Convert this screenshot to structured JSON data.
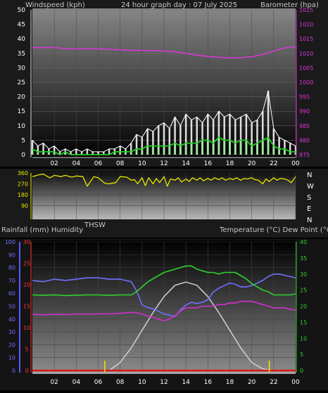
{
  "header": {
    "left": "Windspeed (kph)",
    "center": "24 hour graph day : 07 July 2025",
    "right": "Barometer (hpa)"
  },
  "mid_header": {
    "left": "Rainfall (mm)  Humidity",
    "center": "THSW",
    "right": "Temperature (°C) Dew Point (°C)"
  },
  "colors": {
    "wind_white": "#ffffff",
    "wind_green": "#22d022",
    "barometer": "#d838d8",
    "direction": "#e8e800",
    "humidity": "#7070ff",
    "rain_axis": "#ff3030",
    "temp_green": "#30d030",
    "dewpoint": "#d030d0",
    "thsw": "#cfcfcf",
    "sun_marker": "#e8e800"
  },
  "chart_data": [
    {
      "type": "line",
      "name": "wind-barometer",
      "x_ticks": [
        "02",
        "04",
        "06",
        "08",
        "10",
        "12",
        "14",
        "16",
        "18",
        "20",
        "22",
        "00"
      ],
      "xlim": [
        0,
        24
      ],
      "wind_axis": {
        "ticks": [
          "0",
          "5",
          "10",
          "15",
          "20",
          "25",
          "30",
          "35",
          "40",
          "45",
          "50"
        ],
        "ylim": [
          0,
          50
        ]
      },
      "baro_axis": {
        "ticks": [
          "975",
          "980",
          "985",
          "990",
          "995",
          "1000",
          "1005",
          "1010",
          "1015",
          "1020",
          "1025"
        ],
        "ylim": [
          975,
          1025
        ]
      },
      "barometer": {
        "x": [
          0,
          1,
          2,
          3,
          4,
          5,
          6,
          7,
          8,
          9,
          10,
          11,
          12,
          13,
          14,
          15,
          16,
          17,
          18,
          19,
          20,
          21,
          22,
          23,
          24
        ],
        "values": [
          1012,
          1012,
          1012,
          1011.6,
          1011.5,
          1011.6,
          1011.5,
          1011.4,
          1011.2,
          1011,
          1011,
          1010.9,
          1010.8,
          1010.5,
          1010,
          1009.4,
          1008.9,
          1008.6,
          1008.4,
          1008.5,
          1008.8,
          1009.6,
          1010.8,
          1011.9,
          1012.2
        ]
      },
      "wind_gust": {
        "x": [
          0,
          0.5,
          1,
          1.5,
          2,
          2.5,
          3,
          3.5,
          4,
          4.5,
          5,
          5.5,
          6,
          6.5,
          7,
          7.5,
          8,
          8.5,
          9,
          9.5,
          10,
          10.5,
          11,
          11.5,
          12,
          12.5,
          13,
          13.5,
          14,
          14.5,
          15,
          15.5,
          16,
          16.5,
          17,
          17.5,
          18,
          18.5,
          19,
          19.5,
          20,
          20.5,
          21,
          21.5,
          22,
          22.5,
          23,
          23.5,
          24
        ],
        "values": [
          5,
          3,
          4,
          2,
          3,
          1,
          2,
          1,
          2,
          1,
          2,
          1,
          1,
          1,
          2,
          2,
          3,
          2,
          4,
          7,
          6,
          9,
          8,
          10,
          11,
          9,
          13,
          10,
          14,
          12,
          13,
          11,
          14,
          12,
          15,
          13,
          14,
          12,
          13,
          14,
          11,
          12,
          15,
          22,
          9,
          6,
          5,
          4,
          3
        ]
      },
      "wind_avg": {
        "x": [
          0,
          0.5,
          1,
          1.5,
          2,
          2.5,
          3,
          3.5,
          4,
          4.5,
          5,
          5.5,
          6,
          6.5,
          7,
          7.5,
          8,
          8.5,
          9,
          9.5,
          10,
          10.5,
          11,
          11.5,
          12,
          12.5,
          13,
          13.5,
          14,
          14.5,
          15,
          15.5,
          16,
          16.5,
          17,
          17.5,
          18,
          18.5,
          19,
          19.5,
          20,
          20.5,
          21,
          21.5,
          22,
          22.5,
          23,
          23.5,
          24
        ],
        "values": [
          2,
          1,
          1,
          1,
          1,
          0,
          1,
          0,
          0,
          0,
          0,
          0,
          0,
          0,
          0,
          1,
          1,
          1,
          1,
          2,
          2,
          3,
          3,
          3,
          3,
          3,
          4,
          3,
          4,
          4,
          4,
          5,
          5,
          4,
          6,
          5,
          5,
          4,
          5,
          5,
          3,
          4,
          5,
          6,
          3,
          2,
          2,
          1,
          1
        ]
      }
    },
    {
      "type": "line",
      "name": "wind-direction",
      "x_ticks": [
        "02",
        "04",
        "06",
        "08",
        "10",
        "12",
        "14",
        "16",
        "18",
        "20",
        "22",
        "00"
      ],
      "xlim": [
        0,
        24
      ],
      "ticks": [
        "90",
        "180",
        "270",
        "360"
      ],
      "ylim": [
        0,
        360
      ],
      "compass": [
        "N",
        "W",
        "S",
        "E",
        "N"
      ],
      "series": {
        "x": [
          0,
          0.6,
          1,
          1.6,
          2,
          2.6,
          3,
          3.6,
          4,
          4.6,
          5,
          5.6,
          6,
          6.6,
          7,
          7.6,
          8,
          8.6,
          9,
          9.3,
          9.6,
          10,
          10.3,
          10.6,
          11,
          11.3,
          11.6,
          12,
          12.3,
          12.6,
          13,
          13.3,
          13.6,
          14,
          14.3,
          14.6,
          15,
          15.3,
          15.6,
          16,
          16.3,
          16.6,
          17,
          17.3,
          17.6,
          18,
          18.3,
          18.6,
          19,
          19.3,
          19.6,
          20,
          20.3,
          20.6,
          21,
          21.3,
          21.6,
          22,
          22.3,
          22.6,
          23,
          23.3,
          23.6,
          24
        ],
        "values": [
          330,
          345,
          350,
          320,
          340,
          330,
          340,
          325,
          335,
          330,
          250,
          330,
          320,
          275,
          270,
          280,
          330,
          325,
          300,
          305,
          270,
          320,
          255,
          320,
          270,
          315,
          280,
          330,
          250,
          310,
          300,
          320,
          285,
          310,
          290,
          320,
          300,
          320,
          295,
          315,
          300,
          320,
          305,
          320,
          300,
          315,
          305,
          320,
          300,
          315,
          310,
          320,
          305,
          300,
          270,
          310,
          290,
          320,
          300,
          315,
          310,
          300,
          280,
          330
        ]
      }
    },
    {
      "type": "line",
      "name": "temperature-humidity",
      "x_ticks": [
        "02",
        "04",
        "06",
        "08",
        "10",
        "12",
        "14",
        "16",
        "18",
        "20",
        "22",
        "00"
      ],
      "xlim": [
        0,
        24
      ],
      "humidity_axis": {
        "ticks": [
          "0",
          "10",
          "20",
          "30",
          "40",
          "50",
          "60",
          "70",
          "80",
          "90",
          "100"
        ],
        "ylim": [
          0,
          100
        ]
      },
      "rain_axis": {
        "ticks": [
          "0",
          "5",
          "10",
          "15",
          "20",
          "25",
          "30"
        ],
        "ylim": [
          0,
          30
        ]
      },
      "temp_axis": {
        "ticks": [
          "0",
          "5",
          "10",
          "15",
          "20",
          "25",
          "30",
          "35",
          "40"
        ],
        "ylim": [
          0,
          40
        ]
      },
      "humidity": {
        "x": [
          0,
          1,
          2,
          3,
          4,
          5,
          6,
          7,
          8,
          9,
          9.5,
          10,
          10.5,
          11,
          11.5,
          12,
          12.5,
          13,
          13.5,
          14,
          14.5,
          15,
          15.5,
          16,
          16.5,
          17,
          17.5,
          18,
          18.5,
          19,
          19.5,
          20,
          20.5,
          21,
          21.5,
          22,
          22.5,
          23,
          23.5,
          24
        ],
        "values": [
          70,
          69,
          71,
          70,
          71,
          72,
          72,
          71,
          71,
          69,
          62,
          51,
          49,
          48,
          46,
          44,
          43,
          42,
          47,
          51,
          53,
          52,
          53,
          55,
          61,
          64,
          66,
          68,
          67,
          65,
          65,
          66,
          68,
          70,
          73,
          75,
          75,
          74,
          73,
          72
        ]
      },
      "temperature": {
        "x": [
          0,
          1,
          2,
          3,
          4,
          5,
          6,
          7,
          8,
          9,
          9.5,
          10,
          10.5,
          11,
          11.5,
          12,
          12.5,
          13,
          13.5,
          14,
          14.5,
          15,
          15.5,
          16,
          16.5,
          17,
          17.5,
          18,
          18.5,
          19,
          19.5,
          20,
          20.5,
          21,
          21.5,
          22,
          22.5,
          23,
          23.5,
          24
        ],
        "values": [
          23.5,
          23.4,
          23.5,
          23.3,
          23.4,
          23.5,
          23.5,
          23.4,
          23.5,
          23.5,
          24.5,
          26,
          27.5,
          28.5,
          29.5,
          30.5,
          31,
          31.5,
          32,
          32.5,
          32.5,
          31.5,
          31,
          30.5,
          30.5,
          30,
          30.5,
          30.5,
          30.5,
          29.5,
          28.5,
          27,
          26,
          25,
          24.5,
          23.5,
          23.5,
          23.5,
          23.5,
          23.8
        ]
      },
      "dewpoint": {
        "x": [
          0,
          1,
          2,
          3,
          4,
          5,
          6,
          7,
          8,
          9,
          9.5,
          10,
          10.5,
          11,
          11.5,
          12,
          12.5,
          13,
          13.5,
          14,
          14.5,
          15,
          15.5,
          16,
          16.5,
          17,
          17.5,
          18,
          18.5,
          19,
          19.5,
          20,
          20.5,
          21,
          21.5,
          22,
          22.5,
          23,
          23.5,
          24
        ],
        "values": [
          17.5,
          17.3,
          17.5,
          17.4,
          17.6,
          17.5,
          17.6,
          17.6,
          17.8,
          18,
          18,
          17.5,
          17,
          16.5,
          16,
          15.5,
          16,
          17,
          18.5,
          19.5,
          19.5,
          19.5,
          20,
          20,
          20,
          20.5,
          20.5,
          21,
          21,
          21.5,
          21.5,
          21.5,
          21,
          20.5,
          20,
          19.5,
          19.5,
          19.5,
          19,
          18.8
        ]
      },
      "thsw": {
        "x": [
          7,
          8,
          9,
          10,
          11,
          12,
          13,
          14,
          15,
          16,
          17,
          18,
          19,
          20,
          21,
          22
        ],
        "values": [
          0,
          2.5,
          7,
          12.5,
          18,
          23,
          26.5,
          27.5,
          26.5,
          23,
          18,
          12.5,
          7,
          2.5,
          0.5,
          0
        ]
      },
      "sun_markers": [
        6.6,
        21.6
      ]
    }
  ]
}
